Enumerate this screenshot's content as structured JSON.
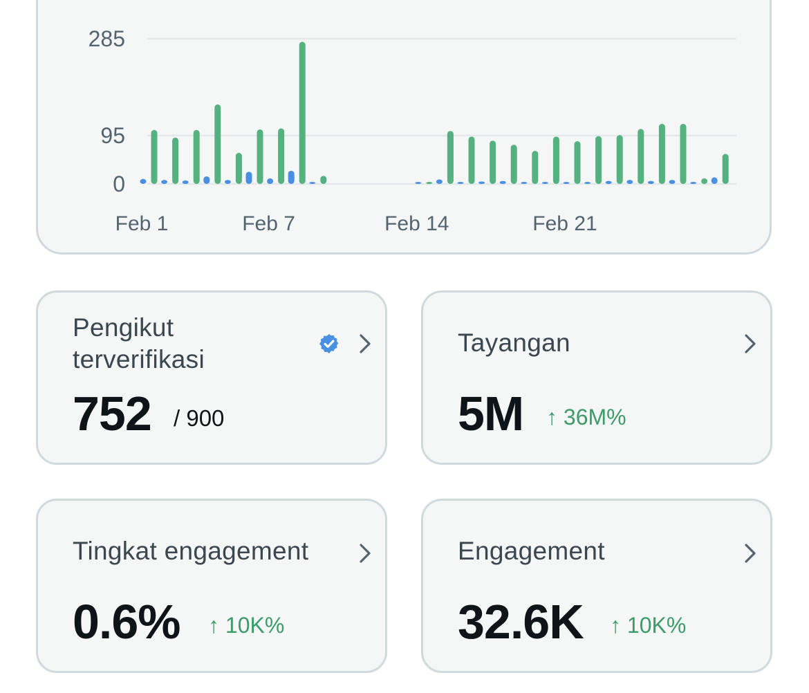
{
  "chart_data": {
    "type": "bar",
    "title": "",
    "xlabel": "",
    "ylabel": "",
    "ylim": [
      0,
      285
    ],
    "y_ticks": [
      {
        "value": 0,
        "label": "0"
      },
      {
        "value": 95,
        "label": "95"
      },
      {
        "value": 285,
        "label": "285"
      }
    ],
    "x_ticks": [
      {
        "day": 1,
        "label": "Feb 1"
      },
      {
        "day": 7,
        "label": "Feb 7"
      },
      {
        "day": 14,
        "label": "Feb 14"
      },
      {
        "day": 21,
        "label": "Feb 21"
      }
    ],
    "categories": [
      "Feb 1",
      "Feb 2",
      "Feb 3",
      "Feb 4",
      "Feb 5",
      "Feb 6",
      "Feb 7",
      "Feb 8",
      "Feb 9",
      "Feb 10",
      "Feb 11",
      "Feb 12",
      "Feb 13",
      "Feb 14",
      "Feb 15",
      "Feb 16",
      "Feb 17",
      "Feb 18",
      "Feb 19",
      "Feb 20",
      "Feb 21",
      "Feb 22",
      "Feb 23",
      "Feb 24",
      "Feb 25",
      "Feb 26",
      "Feb 27",
      "Feb 28"
    ],
    "series": [
      {
        "name": "series-blue",
        "color": "#4a90e2",
        "values": [
          10,
          8,
          7,
          15,
          8,
          24,
          11,
          26,
          2,
          null,
          null,
          null,
          null,
          2,
          9,
          3,
          5,
          6,
          3,
          2,
          2,
          2,
          6,
          8,
          6,
          8,
          2,
          13
        ]
      },
      {
        "name": "series-green",
        "color": "#55b280",
        "values": [
          106,
          91,
          106,
          156,
          61,
          107,
          109,
          279,
          16,
          null,
          null,
          null,
          null,
          3,
          104,
          93,
          85,
          77,
          65,
          93,
          84,
          94,
          96,
          108,
          118,
          118,
          11,
          59
        ]
      }
    ],
    "grid": true
  },
  "cards": {
    "verified_followers": {
      "label_line1": "Pengikut",
      "label_line2": "terverifikasi",
      "value": "752",
      "sub": "/ 900",
      "badge_color": "#4a90e2"
    },
    "impressions": {
      "label": "Tayangan",
      "value": "5M",
      "delta": "↑ 36M%"
    },
    "engagement_rate": {
      "label": "Tingkat engagement",
      "value": "0.6%",
      "delta": "↑ 10K%"
    },
    "engagements": {
      "label": "Engagement",
      "value": "32.6K",
      "delta": "↑ 10K%"
    }
  },
  "colors": {
    "accent_green": "#3d9b6a",
    "card_border": "#cfd9de",
    "card_bg": "#f5f6f6"
  }
}
